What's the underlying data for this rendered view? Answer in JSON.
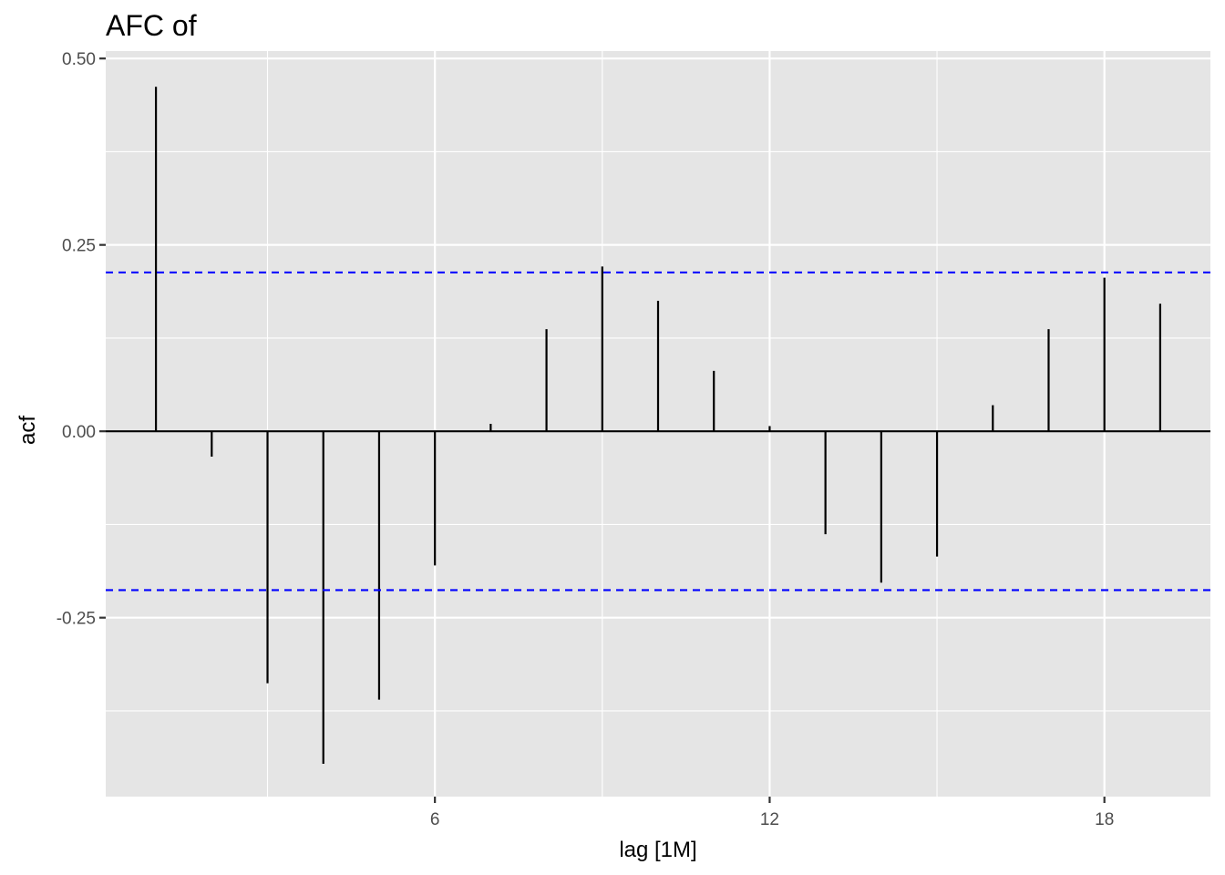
{
  "chart_data": {
    "type": "bar",
    "title": "AFC of",
    "xlabel": "lag [1M]",
    "ylabel": "acf",
    "x": [
      1,
      2,
      3,
      4,
      5,
      6,
      7,
      8,
      9,
      10,
      11,
      12,
      13,
      14,
      15,
      16,
      17,
      18,
      19
    ],
    "values": [
      0.462,
      -0.034,
      -0.338,
      -0.446,
      -0.36,
      -0.18,
      0.01,
      0.137,
      0.221,
      0.175,
      0.081,
      0.007,
      -0.138,
      -0.203,
      -0.168,
      0.035,
      0.137,
      0.206,
      0.171
    ],
    "xlim": [
      0.1,
      19.9
    ],
    "ylim": [
      -0.49,
      0.51
    ],
    "x_ticks": [
      6,
      12,
      18
    ],
    "x_tick_labels": [
      "6",
      "12",
      "18"
    ],
    "y_ticks": [
      -0.25,
      0,
      0.25,
      0.5
    ],
    "y_tick_labels": [
      "-0.25",
      "0.00",
      "0.25",
      "0.50"
    ],
    "confidence_bound": 0.213,
    "grid": true,
    "colors": {
      "panel": "#e5e5e5",
      "grid": "#ffffff",
      "bars": "#000000",
      "bounds": "#0000ff",
      "tick_text": "#4d4d4d"
    }
  }
}
